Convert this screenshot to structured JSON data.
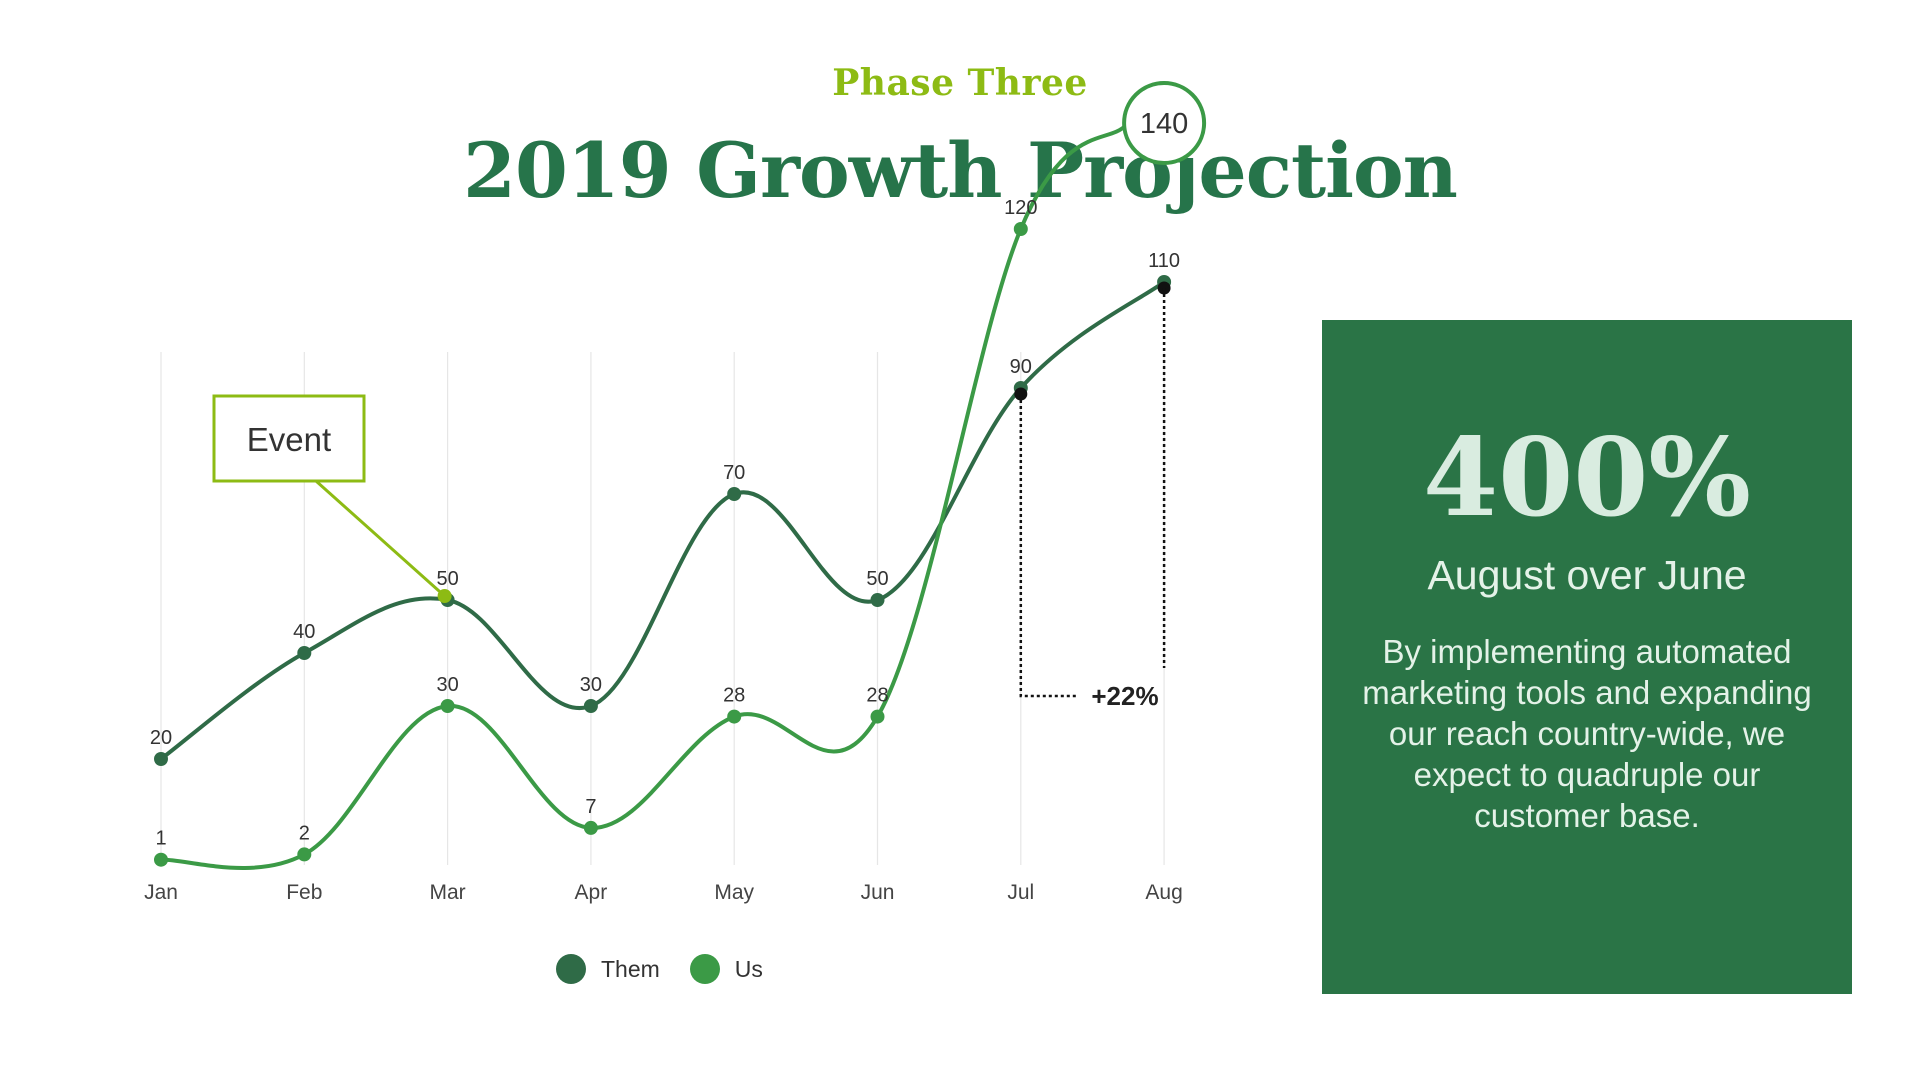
{
  "header": {
    "eyebrow": "Phase Three",
    "title": "2019 Growth Projection"
  },
  "colors": {
    "them": "#2f6b47",
    "us": "#3b9a46",
    "accent": "#8dbb14",
    "panel": "#2a7446"
  },
  "chart_data": {
    "type": "line",
    "title": "",
    "xlabel": "",
    "ylabel": "",
    "categories": [
      "Jan",
      "Feb",
      "Mar",
      "Apr",
      "May",
      "Jun",
      "Jul",
      "Aug"
    ],
    "ylim": [
      0,
      145
    ],
    "grid": "vertical",
    "legend_position": "bottom-center",
    "series": [
      {
        "name": "Them",
        "values": [
          20,
          40,
          50,
          30,
          70,
          50,
          90,
          110
        ],
        "labels": [
          "20",
          "40",
          "50",
          "30",
          "70",
          "50",
          "90",
          "110"
        ]
      },
      {
        "name": "Us",
        "values": [
          1,
          2,
          30,
          7,
          28,
          28,
          120,
          140
        ],
        "labels": [
          "1",
          "2",
          "30",
          "7",
          "28",
          "28",
          "120",
          "140"
        ]
      }
    ],
    "annotations": {
      "event_label": "Event",
      "event_category": "Mar",
      "highlight_value_label": "140",
      "change_label": "+22%",
      "change_from": "Jul",
      "change_to": "Aug"
    }
  },
  "panel": {
    "stat": "400%",
    "subtitle": "August over June",
    "body": "By implementing automated marketing tools and expanding our reach country-wide, we expect to quadruple our customer base."
  }
}
